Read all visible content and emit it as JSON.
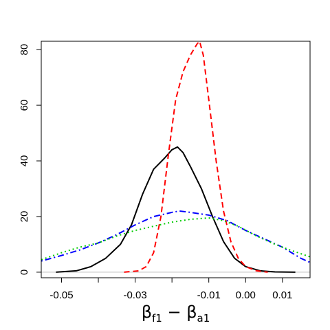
{
  "chart_data": {
    "type": "line",
    "title": "",
    "xlabel": {
      "base1": "β",
      "sub1": "f1",
      "op": " − ",
      "base2": "β",
      "sub2": "a1"
    },
    "ylabel": "",
    "xlim": [
      -0.0555,
      0.0175
    ],
    "ylim": [
      -2,
      83
    ],
    "x_ticks": [
      -0.05,
      -0.03,
      -0.01,
      0.0,
      0.01
    ],
    "x_tick_labels": [
      "-0.05",
      "-0.03",
      "-0.01",
      "0.00",
      "0.01"
    ],
    "x_minor_ticks": [
      -0.04,
      -0.02
    ],
    "y_ticks": [
      0,
      20,
      40,
      60,
      80
    ],
    "y_tick_labels": [
      "0",
      "20",
      "40",
      "60",
      "80"
    ],
    "grid": false,
    "legend": "none",
    "reference_line": {
      "y": 0,
      "color": "#bebebe"
    },
    "series": [
      {
        "color": "#000000",
        "dash": "solid",
        "points": [
          [
            -0.0515,
            0
          ],
          [
            -0.046,
            0.5
          ],
          [
            -0.042,
            2
          ],
          [
            -0.038,
            5
          ],
          [
            -0.034,
            10
          ],
          [
            -0.031,
            17
          ],
          [
            -0.028,
            28
          ],
          [
            -0.025,
            37
          ],
          [
            -0.022,
            41
          ],
          [
            -0.02,
            44
          ],
          [
            -0.0185,
            45
          ],
          [
            -0.017,
            43
          ],
          [
            -0.015,
            38
          ],
          [
            -0.012,
            30
          ],
          [
            -0.009,
            20
          ],
          [
            -0.006,
            11
          ],
          [
            -0.003,
            5
          ],
          [
            0.0,
            2
          ],
          [
            0.004,
            0.5
          ],
          [
            0.008,
            0.1
          ],
          [
            0.0135,
            0
          ]
        ]
      },
      {
        "color": "#ff0000",
        "dash": "dashed",
        "points": [
          [
            -0.033,
            0
          ],
          [
            -0.029,
            0.5
          ],
          [
            -0.027,
            2
          ],
          [
            -0.025,
            7
          ],
          [
            -0.023,
            20
          ],
          [
            -0.021,
            42
          ],
          [
            -0.019,
            62
          ],
          [
            -0.017,
            72
          ],
          [
            -0.015,
            78
          ],
          [
            -0.0132,
            82
          ],
          [
            -0.0125,
            83
          ],
          [
            -0.0115,
            78
          ],
          [
            -0.01,
            62
          ],
          [
            -0.008,
            40
          ],
          [
            -0.006,
            22
          ],
          [
            -0.004,
            11
          ],
          [
            -0.002,
            5
          ],
          [
            0.0,
            2
          ],
          [
            0.003,
            0.5
          ],
          [
            0.006,
            0
          ]
        ]
      },
      {
        "color": "#0000ff",
        "dash": "dotdash",
        "points": [
          [
            -0.0555,
            4
          ],
          [
            -0.05,
            6
          ],
          [
            -0.045,
            8
          ],
          [
            -0.04,
            10.5
          ],
          [
            -0.035,
            13.5
          ],
          [
            -0.03,
            17
          ],
          [
            -0.025,
            20
          ],
          [
            -0.02,
            21.5
          ],
          [
            -0.018,
            22
          ],
          [
            -0.015,
            21.5
          ],
          [
            -0.01,
            20.5
          ],
          [
            -0.005,
            18.5
          ],
          [
            0.0,
            15
          ],
          [
            0.005,
            12
          ],
          [
            0.01,
            9
          ],
          [
            0.015,
            5
          ],
          [
            0.0175,
            3.5
          ]
        ]
      },
      {
        "color": "#00cc00",
        "dash": "dotted",
        "points": [
          [
            -0.0555,
            4.5
          ],
          [
            -0.05,
            7
          ],
          [
            -0.045,
            9
          ],
          [
            -0.04,
            10.5
          ],
          [
            -0.035,
            13
          ],
          [
            -0.03,
            15
          ],
          [
            -0.025,
            16.5
          ],
          [
            -0.02,
            18
          ],
          [
            -0.015,
            19
          ],
          [
            -0.01,
            19.5
          ],
          [
            -0.006,
            18.5
          ],
          [
            -0.002,
            16.5
          ],
          [
            0.003,
            13
          ],
          [
            0.008,
            10
          ],
          [
            0.012,
            8
          ],
          [
            0.0175,
            5.5
          ]
        ]
      }
    ]
  }
}
